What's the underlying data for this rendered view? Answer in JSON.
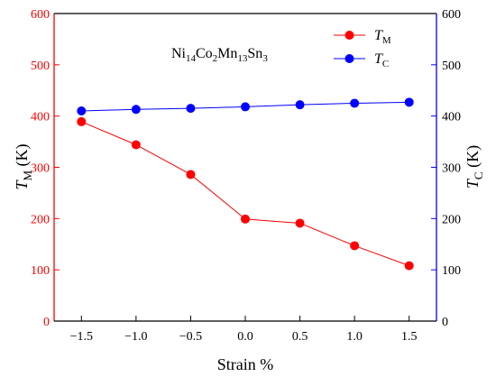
{
  "chart_data": {
    "type": "line",
    "annotation": {
      "parts": [
        {
          "t": "Ni",
          "sub": false
        },
        {
          "t": "14",
          "sub": true
        },
        {
          "t": "Co",
          "sub": false
        },
        {
          "t": "2",
          "sub": true
        },
        {
          "t": "Mn",
          "sub": false
        },
        {
          "t": "13",
          "sub": true
        },
        {
          "t": "Sn",
          "sub": false
        },
        {
          "t": "3",
          "sub": true
        }
      ]
    },
    "xlabel": "Strain %",
    "ylabel_left": {
      "main": "T",
      "sub": "M",
      "unit": " (K)"
    },
    "ylabel_right": {
      "main": "T",
      "sub": "C",
      "unit": " (K)"
    },
    "xlim": [
      -1.75,
      1.75
    ],
    "ylim_left": [
      0,
      600
    ],
    "ylim_right": [
      0,
      600
    ],
    "x_ticks": [
      -1.5,
      -1.0,
      -0.5,
      0.0,
      0.5,
      1.0,
      1.5
    ],
    "x_tick_labels": [
      "-1.5",
      "-1.0",
      "-0.5",
      "0.0",
      "0.5",
      "1.0",
      "1.5"
    ],
    "y_ticks_left": [
      0,
      100,
      200,
      300,
      400,
      500,
      600
    ],
    "y_tick_labels_left": [
      "0",
      "100",
      "200",
      "300",
      "400",
      "500",
      "600"
    ],
    "y_ticks_right": [
      0,
      100,
      200,
      300,
      400,
      500,
      600
    ],
    "y_tick_labels_right": [
      "0",
      "100",
      "200",
      "300",
      "400",
      "500",
      "600"
    ],
    "grid": false,
    "legend_position": "top-right",
    "series": [
      {
        "name": "TM",
        "legend": {
          "main": "T",
          "sub": "M"
        },
        "axis": "left",
        "color": "#ff0000",
        "x": [
          -1.5,
          -1.0,
          -0.5,
          0.0,
          0.5,
          1.0,
          1.5
        ],
        "y": [
          389,
          344,
          286,
          199,
          191,
          147,
          108
        ]
      },
      {
        "name": "TC",
        "legend": {
          "main": "T",
          "sub": "C"
        },
        "axis": "right",
        "color": "#0000ff",
        "x": [
          -1.5,
          -1.0,
          -0.5,
          0.0,
          0.5,
          1.0,
          1.5
        ],
        "y": [
          410,
          413,
          415,
          418,
          422,
          425,
          427
        ]
      }
    ]
  }
}
